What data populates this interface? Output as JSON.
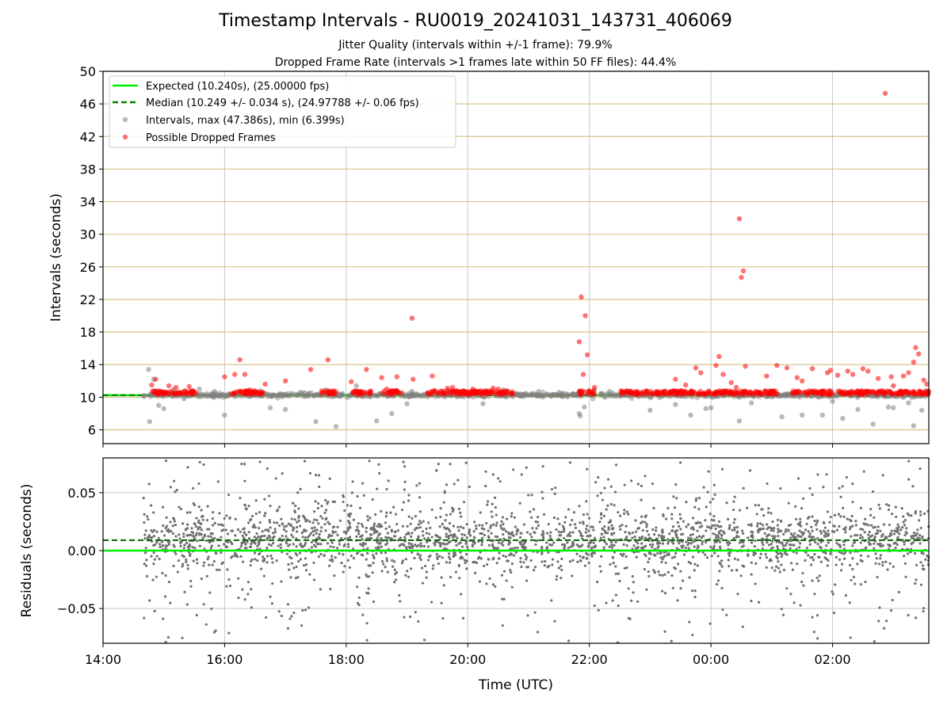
{
  "chart_data": [
    {
      "type": "scatter",
      "title": "Timestamp Intervals - RU0019_20241031_143731_406069",
      "subtitles": [
        "Jitter Quality (intervals within +/-1 frame): 79.9%",
        "Dropped Frame Rate (intervals >1 frames late within 50 FF files): 44.4%"
      ],
      "xlabel": "",
      "ylabel": "Intervals (seconds)",
      "xlim": [
        "14:00",
        "03:35"
      ],
      "ylim": [
        4.3,
        50
      ],
      "yticks": [
        "6",
        "10",
        "14",
        "18",
        "22",
        "26",
        "30",
        "34",
        "38",
        "42",
        "46",
        "50"
      ],
      "grid": true,
      "legend_position": "top-left",
      "legend": [
        "Expected (10.240s), (25.00000 fps)",
        "Median (10.249 +/- 0.034 s), (24.97788 +/- 0.06 fps)",
        "Intervals, max (47.386s), min (6.399s)",
        "Possible Dropped Frames"
      ],
      "expected_interval": 10.24,
      "median_interval": 10.249,
      "series": [
        {
          "name": "Intervals, max (47.386s), min (6.399s)",
          "color": "#808080",
          "x": [
            "14:45",
            "14:46",
            "14:50",
            "14:55",
            "15:00",
            "15:10",
            "15:20",
            "15:35",
            "15:50",
            "16:00",
            "16:20",
            "16:35",
            "16:45",
            "17:00",
            "17:15",
            "17:30",
            "17:40",
            "17:50",
            "18:10",
            "18:30",
            "18:45",
            "19:00",
            "19:05",
            "19:20",
            "19:40",
            "20:00",
            "20:15",
            "20:35",
            "20:50",
            "21:10",
            "21:30",
            "21:50",
            "21:51",
            "21:55",
            "22:05",
            "22:20",
            "22:40",
            "23:00",
            "23:15",
            "23:25",
            "23:40",
            "23:55",
            "00:00",
            "00:15",
            "00:28",
            "00:40",
            "01:00",
            "01:10",
            "01:30",
            "01:45",
            "01:50",
            "02:00",
            "02:10",
            "02:25",
            "02:40",
            "02:55",
            "03:00",
            "03:15",
            "03:20",
            "03:28",
            "03:32"
          ],
          "y": [
            13.4,
            7.0,
            12.2,
            9.0,
            8.6,
            10.9,
            9.8,
            11.0,
            10.7,
            7.8,
            10.3,
            10.8,
            8.7,
            8.5,
            10.6,
            7.0,
            10.9,
            6.4,
            11.4,
            7.1,
            8.0,
            9.2,
            10.7,
            10.5,
            10.8,
            10.6,
            9.2,
            10.9,
            10.3,
            10.7,
            10.6,
            8.0,
            7.7,
            8.8,
            10.9,
            10.7,
            10.5,
            8.4,
            10.7,
            9.1,
            7.8,
            8.6,
            8.7,
            10.6,
            7.1,
            9.3,
            10.7,
            7.6,
            7.8,
            10.6,
            7.8,
            9.5,
            7.4,
            8.5,
            6.7,
            8.8,
            8.7,
            9.3,
            6.5,
            8.4,
            10.8
          ]
        },
        {
          "name": "Possible Dropped Frames",
          "color": "#ff0000",
          "x": [
            "14:48",
            "14:52",
            "15:05",
            "15:12",
            "15:25",
            "15:28",
            "15:32",
            "16:00",
            "16:10",
            "16:15",
            "16:20",
            "16:25",
            "16:40",
            "17:00",
            "17:25",
            "17:42",
            "18:05",
            "18:20",
            "18:35",
            "18:40",
            "18:50",
            "19:05",
            "19:06",
            "19:25",
            "19:40",
            "19:45",
            "20:05",
            "20:25",
            "20:30",
            "21:50",
            "21:52",
            "21:54",
            "21:56",
            "21:58",
            "22:05",
            "23:25",
            "23:35",
            "23:45",
            "23:50",
            "00:05",
            "00:08",
            "00:12",
            "00:20",
            "00:25",
            "00:28",
            "00:30",
            "00:32",
            "00:34",
            "00:55",
            "01:05",
            "01:15",
            "01:25",
            "01:30",
            "01:40",
            "01:55",
            "01:58",
            "02:05",
            "02:15",
            "02:20",
            "02:30",
            "02:35",
            "02:45",
            "02:52",
            "02:58",
            "03:00",
            "03:10",
            "03:15",
            "03:20",
            "03:22",
            "03:25",
            "03:30",
            "03:33"
          ],
          "y": [
            11.5,
            12.2,
            11.4,
            11.2,
            11.3,
            10.6,
            10.5,
            12.5,
            12.8,
            14.6,
            12.8,
            10.9,
            11.6,
            12.0,
            13.4,
            14.6,
            11.9,
            13.4,
            12.4,
            11.0,
            12.5,
            19.7,
            12.2,
            12.6,
            11.1,
            11.2,
            11.0,
            11.1,
            11.0,
            16.8,
            22.3,
            12.8,
            20.0,
            15.2,
            11.2,
            12.2,
            11.5,
            13.6,
            13.0,
            13.9,
            15.0,
            12.8,
            11.8,
            11.2,
            31.9,
            24.7,
            25.5,
            13.8,
            12.6,
            13.9,
            13.6,
            12.4,
            12.0,
            13.5,
            13.0,
            13.3,
            12.7,
            13.2,
            12.8,
            13.5,
            13.2,
            12.3,
            47.3,
            12.5,
            11.4,
            12.6,
            13.0,
            14.3,
            16.1,
            15.3,
            12.1,
            11.6
          ]
        }
      ]
    },
    {
      "type": "scatter",
      "title": "",
      "xlabel": "Time (UTC)",
      "ylabel": "Residuals (seconds)",
      "xlim": [
        "14:00",
        "03:35"
      ],
      "ylim": [
        -0.08,
        0.08
      ],
      "xticks": [
        "14:00",
        "16:00",
        "18:00",
        "20:00",
        "22:00",
        "00:00",
        "02:00"
      ],
      "yticks": [
        "−0.05",
        "0.00",
        "0.05"
      ],
      "grid": true,
      "expected_residual": 0.0,
      "median_residual": 0.009,
      "series": [
        {
          "name": "",
          "color": "#707070",
          "x_range": [
            "14:40",
            "03:35"
          ],
          "center": 0.009,
          "spread_dense": 0.012,
          "spread_sparse": 0.045,
          "point_count": 2600
        }
      ]
    }
  ]
}
